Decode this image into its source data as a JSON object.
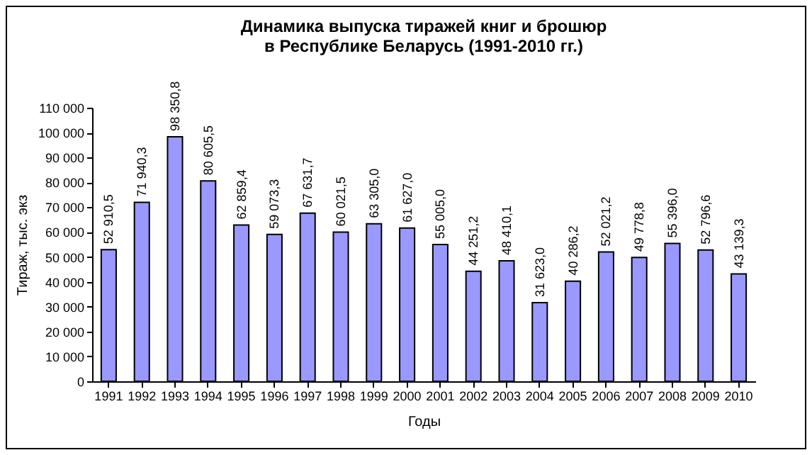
{
  "chart_data": {
    "type": "bar",
    "title": "Динамика выпуска тиражей книг и брошюр\nв Республике Беларусь (1991-2010 гг.)",
    "xlabel": "Годы",
    "ylabel": "Тираж, тыс. экз",
    "categories": [
      "1991",
      "1992",
      "1993",
      "1994",
      "1995",
      "1996",
      "1997",
      "1998",
      "1999",
      "2000",
      "2001",
      "2002",
      "2003",
      "2004",
      "2005",
      "2006",
      "2007",
      "2008",
      "2009",
      "2010"
    ],
    "values": [
      52910.5,
      71940.3,
      98350.8,
      80605.5,
      62859.4,
      59073.3,
      67631.7,
      60021.5,
      63305.0,
      61627.0,
      55005.0,
      44251.2,
      48410.1,
      31623.0,
      40286.2,
      52021.2,
      49778.8,
      55396.0,
      52796.6,
      43139.3
    ],
    "value_labels": [
      "52 910,5",
      "71 940,3",
      "98 350,8",
      "80 605,5",
      "62 859,4",
      "59 073,3",
      "67 631,7",
      "60 021,5",
      "63 305,0",
      "61 627,0",
      "55 005,0",
      "44 251,2",
      "48 410,1",
      "31 623,0",
      "40 286,2",
      "52 021,2",
      "49 778,8",
      "55 396,0",
      "52 796,6",
      "43 139,3"
    ],
    "color": "#9999ff",
    "ylim": [
      0,
      110000
    ],
    "yticks": [
      {
        "value": 0,
        "label": "0"
      },
      {
        "value": 10000,
        "label": "10 000"
      },
      {
        "value": 20000,
        "label": "20 000"
      },
      {
        "value": 30000,
        "label": "30 000"
      },
      {
        "value": 40000,
        "label": "40 000"
      },
      {
        "value": 50000,
        "label": "50 000"
      },
      {
        "value": 60000,
        "label": "60 000"
      },
      {
        "value": 70000,
        "label": "70 000"
      },
      {
        "value": 80000,
        "label": "80 000"
      },
      {
        "value": 90000,
        "label": "90 000"
      },
      {
        "value": 100000,
        "label": "100 000"
      },
      {
        "value": 110000,
        "label": "110 000"
      }
    ],
    "grid": false
  }
}
